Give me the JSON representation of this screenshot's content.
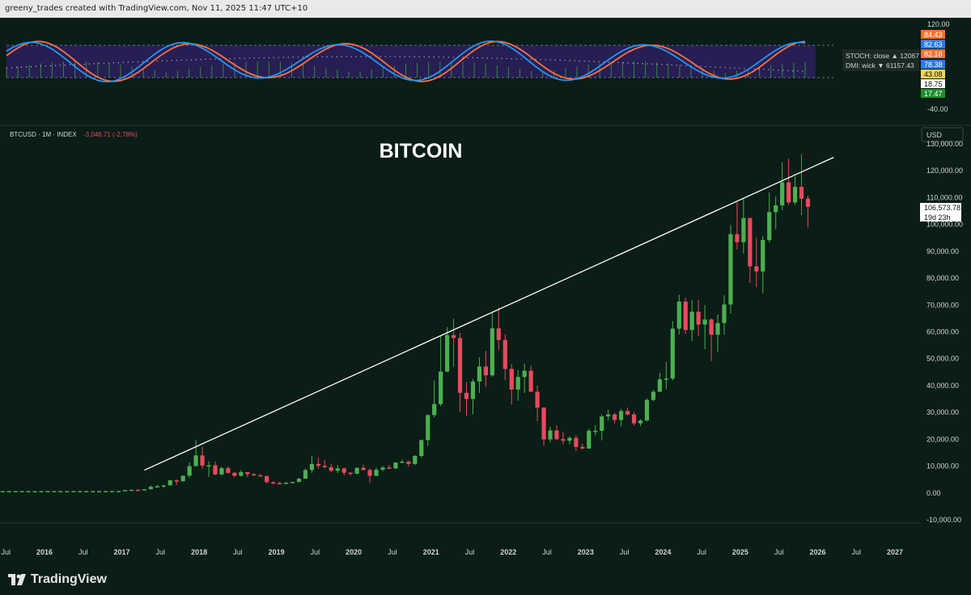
{
  "header": {
    "credit": "greeny_trades created with TradingView.com, Nov 11, 2025 11:47 UTC+10"
  },
  "main_pane": {
    "symbol_line": "BTCUSD · 1M · INDEX",
    "change": "-3,046.71 (-2.78%)",
    "title": "BITCOIN",
    "currency": "USD",
    "last_price": "106,573.78",
    "countdown": "19d 23h"
  },
  "indicator_pane": {
    "legend": [
      {
        "text": "STOCH: close ▲ 12067",
        "color": "#d1d4dc"
      },
      {
        "text": "DMI: wick ▼ 61157.43",
        "color": "#d1d4dc"
      }
    ],
    "axis_ticks": [
      "120.00",
      "-40.00"
    ],
    "value_tags": [
      {
        "text": "84.43",
        "bg": "#f7722c",
        "fg": "#ffffff"
      },
      {
        "text": "82.63",
        "bg": "#2a7ce2",
        "fg": "#ffffff"
      },
      {
        "text": "82.18",
        "bg": "#f7722c",
        "fg": "#ffffff"
      },
      {
        "text": "78.38",
        "bg": "#2a7ce2",
        "fg": "#ffffff"
      },
      {
        "text": "43.08",
        "bg": "#f1d35c",
        "fg": "#111111"
      },
      {
        "text": "18.75",
        "bg": "#ffffff",
        "fg": "#111111"
      },
      {
        "text": "17.47",
        "bg": "#1f8f2e",
        "fg": "#ffffff"
      }
    ]
  },
  "footer": {
    "brand": "TradingView"
  },
  "colors": {
    "up": "#4caf50",
    "down": "#e84a5f",
    "stoch_k": "#2196f3",
    "stoch_d": "#ff7043",
    "band": "#2d1f5e"
  },
  "chart_data": {
    "type": "candlestick",
    "title": "BITCOIN",
    "ylim": [
      -10000,
      130000
    ],
    "y_ticks": [
      "130,000.00",
      "120,000.00",
      "110,000.00",
      "100,000.00",
      "90,000.00",
      "80,000.00",
      "70,000.00",
      "60,000.00",
      "50,000.00",
      "40,000.00",
      "30,000.00",
      "20,000.00",
      "10,000.00",
      "0.00",
      "-10,000.00"
    ],
    "x_ticks": [
      "Jul",
      "2016",
      "Jul",
      "2017",
      "Jul",
      "2018",
      "Jul",
      "2019",
      "Jul",
      "2020",
      "Jul",
      "2021",
      "Jul",
      "2022",
      "Jul",
      "2023",
      "Jul",
      "2024",
      "Jul",
      "2025",
      "Jul",
      "2026",
      "Jul",
      "2027"
    ],
    "trendline": {
      "from": [
        "2017-04",
        8500
      ],
      "to": [
        "2026-03",
        125000
      ]
    },
    "candles": [
      [
        "2017-01",
        950,
        1050,
        1150,
        900
      ],
      [
        "2017-02",
        1050,
        1200,
        1250,
        950
      ],
      [
        "2017-03",
        1200,
        1100,
        1300,
        900
      ],
      [
        "2017-04",
        1100,
        1400,
        1450,
        1050
      ],
      [
        "2017-05",
        1400,
        2300,
        2800,
        1400
      ],
      [
        "2017-06",
        2300,
        2500,
        3000,
        2100
      ],
      [
        "2017-07",
        2500,
        2850,
        2950,
        1800
      ],
      [
        "2017-08",
        2850,
        4700,
        4800,
        2700
      ],
      [
        "2017-09",
        4700,
        4350,
        5000,
        3000
      ],
      [
        "2017-10",
        4350,
        6450,
        6500,
        4200
      ],
      [
        "2017-11",
        6450,
        10000,
        11400,
        5600
      ],
      [
        "2017-12",
        10000,
        14000,
        19700,
        10000
      ],
      [
        "2018-01",
        14000,
        10200,
        17200,
        9000
      ],
      [
        "2018-02",
        10200,
        10300,
        11800,
        6000
      ],
      [
        "2018-03",
        10300,
        6900,
        11700,
        6600
      ],
      [
        "2018-04",
        6900,
        9250,
        9800,
        6500
      ],
      [
        "2018-05",
        9250,
        7500,
        9950,
        7100
      ],
      [
        "2018-06",
        7500,
        6400,
        7800,
        5800
      ],
      [
        "2018-07",
        6400,
        7750,
        8500,
        6100
      ],
      [
        "2018-08",
        7750,
        7000,
        7800,
        5900
      ],
      [
        "2018-09",
        7000,
        6600,
        7400,
        6200
      ],
      [
        "2018-10",
        6600,
        6300,
        7100,
        6200
      ],
      [
        "2018-11",
        6300,
        4000,
        6500,
        3600
      ],
      [
        "2018-12",
        4000,
        3700,
        4300,
        3200
      ],
      [
        "2019-01",
        3700,
        3450,
        4100,
        3350
      ],
      [
        "2019-02",
        3450,
        3800,
        4200,
        3400
      ],
      [
        "2019-03",
        3800,
        4100,
        4150,
        3700
      ],
      [
        "2019-04",
        4100,
        5300,
        5600,
        4050
      ],
      [
        "2019-05",
        5300,
        8550,
        9100,
        5300
      ],
      [
        "2019-06",
        8550,
        10800,
        13900,
        7500
      ],
      [
        "2019-07",
        10800,
        10100,
        13200,
        9100
      ],
      [
        "2019-08",
        10100,
        9600,
        12300,
        9300
      ],
      [
        "2019-09",
        9600,
        8300,
        10900,
        7700
      ],
      [
        "2019-10",
        8300,
        9150,
        10400,
        7300
      ],
      [
        "2019-11",
        9150,
        7550,
        9500,
        6500
      ],
      [
        "2019-12",
        7550,
        7200,
        7700,
        6400
      ],
      [
        "2020-01",
        7200,
        9350,
        9600,
        6850
      ],
      [
        "2020-02",
        9350,
        8550,
        10500,
        8400
      ],
      [
        "2020-03",
        8550,
        6400,
        9200,
        3800
      ],
      [
        "2020-04",
        6400,
        8650,
        9450,
        6200
      ],
      [
        "2020-05",
        8650,
        9450,
        10100,
        8100
      ],
      [
        "2020-06",
        9450,
        9150,
        10400,
        8900
      ],
      [
        "2020-07",
        9150,
        11350,
        11450,
        8900
      ],
      [
        "2020-08",
        11350,
        11650,
        12500,
        11100
      ],
      [
        "2020-09",
        11650,
        10800,
        12100,
        9850
      ],
      [
        "2020-10",
        10800,
        13800,
        14100,
        10400
      ],
      [
        "2020-11",
        13800,
        19700,
        19900,
        13200
      ],
      [
        "2020-12",
        19700,
        29000,
        29300,
        17600
      ],
      [
        "2021-01",
        29000,
        33100,
        41900,
        28100
      ],
      [
        "2021-02",
        33100,
        45200,
        58300,
        32300
      ],
      [
        "2021-03",
        45200,
        58800,
        61800,
        45000
      ],
      [
        "2021-04",
        58800,
        57700,
        64900,
        47000
      ],
      [
        "2021-05",
        57700,
        37300,
        59600,
        30000
      ],
      [
        "2021-06",
        37300,
        35000,
        41300,
        28800
      ],
      [
        "2021-07",
        35000,
        41500,
        42400,
        29300
      ],
      [
        "2021-08",
        41500,
        47100,
        50500,
        37300
      ],
      [
        "2021-09",
        47100,
        43800,
        52900,
        39600
      ],
      [
        "2021-10",
        43800,
        61300,
        67000,
        43300
      ],
      [
        "2021-11",
        61300,
        57000,
        69000,
        53300
      ],
      [
        "2021-12",
        57000,
        46200,
        59100,
        42000
      ],
      [
        "2022-01",
        46200,
        38500,
        47900,
        32900
      ],
      [
        "2022-02",
        38500,
        43200,
        45800,
        34300
      ],
      [
        "2022-03",
        43200,
        45500,
        48200,
        37200
      ],
      [
        "2022-04",
        45500,
        37700,
        47400,
        37600
      ],
      [
        "2022-05",
        37700,
        31800,
        40000,
        26700
      ],
      [
        "2022-06",
        31800,
        19950,
        31900,
        17600
      ],
      [
        "2022-07",
        19950,
        23300,
        24700,
        18800
      ],
      [
        "2022-08",
        23300,
        20050,
        25200,
        19600
      ],
      [
        "2022-09",
        20050,
        19450,
        22700,
        18150
      ],
      [
        "2022-10",
        19450,
        20500,
        21100,
        18200
      ],
      [
        "2022-11",
        20500,
        17150,
        21500,
        15500
      ],
      [
        "2022-12",
        17150,
        16550,
        18400,
        16300
      ],
      [
        "2023-01",
        16550,
        23150,
        23950,
        16500
      ],
      [
        "2023-02",
        23150,
        23150,
        25250,
        21400
      ],
      [
        "2023-03",
        23150,
        28500,
        29200,
        19550
      ],
      [
        "2023-04",
        28500,
        29250,
        31000,
        26950
      ],
      [
        "2023-05",
        29250,
        27200,
        29850,
        25800
      ],
      [
        "2023-06",
        27200,
        30500,
        31400,
        24800
      ],
      [
        "2023-07",
        30500,
        29250,
        31800,
        28850
      ],
      [
        "2023-08",
        29250,
        25950,
        30150,
        25150
      ],
      [
        "2023-09",
        25950,
        27000,
        27500,
        24900
      ],
      [
        "2023-10",
        27000,
        34650,
        35200,
        26600
      ],
      [
        "2023-11",
        34650,
        37700,
        38400,
        34100
      ],
      [
        "2023-12",
        37700,
        42300,
        44700,
        37600
      ],
      [
        "2024-01",
        42300,
        42600,
        48900,
        38600
      ],
      [
        "2024-02",
        42600,
        61200,
        64000,
        41900
      ],
      [
        "2024-03",
        61200,
        71300,
        73800,
        59000
      ],
      [
        "2024-04",
        71300,
        60700,
        72700,
        59200
      ],
      [
        "2024-05",
        60700,
        67500,
        71900,
        56600
      ],
      [
        "2024-06",
        67500,
        62700,
        71900,
        58500
      ],
      [
        "2024-07",
        62700,
        64600,
        70000,
        53600
      ],
      [
        "2024-08",
        64600,
        58900,
        65000,
        49100
      ],
      [
        "2024-09",
        58900,
        63300,
        66500,
        52600
      ],
      [
        "2024-10",
        63300,
        70200,
        73600,
        58900
      ],
      [
        "2024-11",
        70200,
        96400,
        99800,
        66800
      ],
      [
        "2024-12",
        96400,
        93400,
        108300,
        90700
      ],
      [
        "2025-01",
        93400,
        102400,
        109600,
        89200
      ],
      [
        "2025-02",
        102400,
        84400,
        102500,
        78200
      ],
      [
        "2025-03",
        84400,
        82500,
        95000,
        76600
      ],
      [
        "2025-04",
        82500,
        94200,
        95800,
        74400
      ],
      [
        "2025-05",
        94200,
        104600,
        111900,
        93300
      ],
      [
        "2025-06",
        104600,
        107100,
        110600,
        98200
      ],
      [
        "2025-07",
        107100,
        115700,
        123200,
        105300
      ],
      [
        "2025-08",
        115700,
        108200,
        124500,
        107300
      ],
      [
        "2025-09",
        108200,
        114000,
        117900,
        107300
      ],
      [
        "2025-10",
        114000,
        109600,
        126200,
        103500
      ],
      [
        "2025-11",
        109600,
        106573.78,
        110700,
        98900
      ]
    ]
  }
}
